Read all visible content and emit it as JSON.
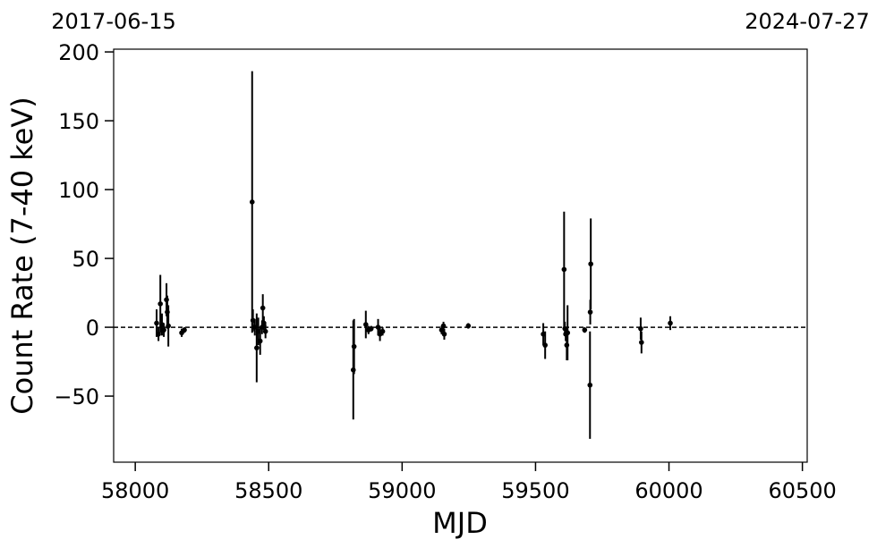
{
  "chart_data": {
    "type": "errorbar",
    "xlabel": "MJD",
    "ylabel": "Count Rate (7-40 keV)",
    "x2_labels": [
      "2017-06-15",
      "2024-07-27"
    ],
    "xlim": [
      57919,
      60518
    ],
    "ylim": [
      -98,
      202
    ],
    "xticks": [
      58000,
      58500,
      59000,
      59500,
      60000,
      60500
    ],
    "yticks": [
      {
        "value": -50,
        "label": "−50"
      },
      0,
      50,
      100,
      150,
      200
    ],
    "reference_line": 0,
    "color": "#000000",
    "series": [
      {
        "x": [
          58080,
          58087,
          58094,
          58100,
          58107,
          58117,
          58120,
          58124,
          58174,
          58184,
          58438,
          58441,
          58448,
          58455,
          58461,
          58468,
          58475,
          58478,
          58482,
          58488,
          58817,
          58820,
          58864,
          58874,
          58884,
          58910,
          58917,
          58927,
          59148,
          59155,
          59158,
          59248,
          59529,
          59536,
          59607,
          59610,
          59613,
          59617,
          59620,
          59684,
          59704,
          59707,
          59705,
          59894,
          59897,
          60005
        ],
        "values": [
          3,
          -5,
          17,
          2,
          -2,
          20,
          11,
          1,
          -4,
          -2,
          91,
          5,
          0,
          -15,
          -3,
          -10,
          0,
          14,
          3,
          -3,
          -31,
          -14,
          2,
          -2,
          -1,
          0,
          -5,
          -3,
          -2,
          1,
          -5,
          1,
          -5,
          -13,
          42,
          -1,
          -5,
          -13,
          -4,
          -2,
          -42,
          46,
          11,
          -1,
          -11,
          3
        ],
        "errors": [
          10,
          5,
          21,
          8,
          5,
          12,
          12,
          15,
          3,
          2,
          95,
          8,
          6,
          25,
          10,
          10,
          5,
          10,
          5,
          5,
          36,
          20,
          10,
          3,
          2,
          6,
          5,
          3,
          3,
          3,
          4,
          2,
          8,
          10,
          42,
          5,
          5,
          11,
          20,
          2,
          39,
          33,
          9,
          8,
          8,
          5
        ]
      }
    ]
  }
}
